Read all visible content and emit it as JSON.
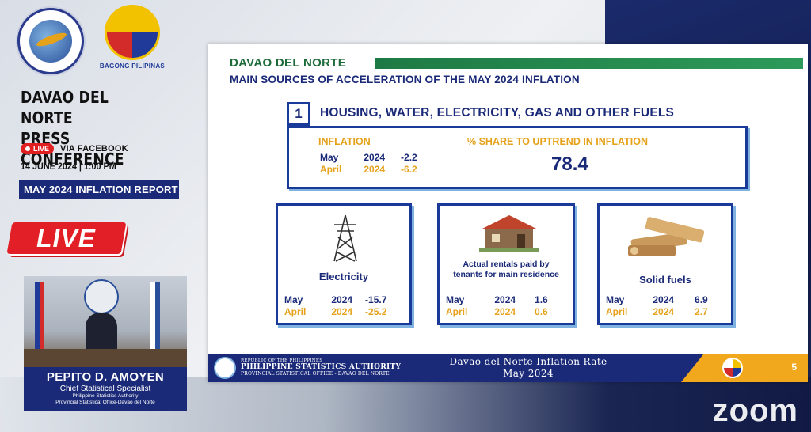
{
  "sidebar": {
    "psa_logo_icon": "psa-seal-icon",
    "bagong_logo_label": "BAGONG PILIPINAS",
    "conference_title_line1": "DAVAO DEL NORTE",
    "conference_title_line2": "PRESS CONFERENCE",
    "live_pill": "LIVE",
    "via": "VIA FACEBOOK",
    "date_time": "14 JUNE 2024 | 1:00 PM",
    "report_label": "MAY 2024 INFLATION REPORT",
    "live_banner": "LIVE"
  },
  "speaker": {
    "name": "PEPITO D. AMOYEN",
    "title": "Chief Statistical Specialist",
    "org_line1": "Philippine Statistics Authority",
    "org_line2": "Provincial Statistical Office-Davao del Norte"
  },
  "slide": {
    "region": "DAVAO DEL NORTE",
    "subtitle": "MAIN SOURCES OF ACCELERATION OF THE MAY 2024 INFLATION",
    "rank": "1",
    "main_category": "HOUSING, WATER, ELECTRICITY, GAS AND OTHER FUELS",
    "inflation_label": "INFLATION",
    "share_label": "% SHARE TO UPTREND IN INFLATION",
    "share_value": "78.4",
    "main_rows": [
      {
        "month": "May",
        "year": "2024",
        "value": "-2.2"
      },
      {
        "month": "April",
        "year": "2024",
        "value": "-6.2"
      }
    ],
    "cards": [
      {
        "label": "Electricity",
        "icon": "transmission-tower-icon",
        "rows": [
          {
            "month": "May",
            "year": "2024",
            "value": "-15.7"
          },
          {
            "month": "April",
            "year": "2024",
            "value": "-25.2"
          }
        ]
      },
      {
        "label": "Actual rentals paid by tenants for main residence",
        "icon": "house-icon",
        "rows": [
          {
            "month": "May",
            "year": "2024",
            "value": "1.6"
          },
          {
            "month": "April",
            "year": "2024",
            "value": "0.6"
          }
        ]
      },
      {
        "label": "Solid fuels",
        "icon": "firewood-icon",
        "rows": [
          {
            "month": "May",
            "year": "2024",
            "value": "6.9"
          },
          {
            "month": "April",
            "year": "2024",
            "value": "2.7"
          }
        ]
      }
    ],
    "footer": {
      "org_line1": "REPUBLIC OF THE PHILIPPINES",
      "org_line2": "PHILIPPINE STATISTICS AUTHORITY",
      "org_line3": "PROVINCIAL STATISTICAL OFFICE - DAVAO DEL NORTE",
      "title_line1": "Davao del Norte Inflation Rate",
      "title_line2": "May 2024",
      "page_number": "5"
    }
  },
  "app": {
    "watermark": "zoom"
  },
  "colors": {
    "navy": "#1a2a78",
    "gold": "#e6a21b",
    "green": "#1e6b3a",
    "live_red": "#e21f26"
  }
}
